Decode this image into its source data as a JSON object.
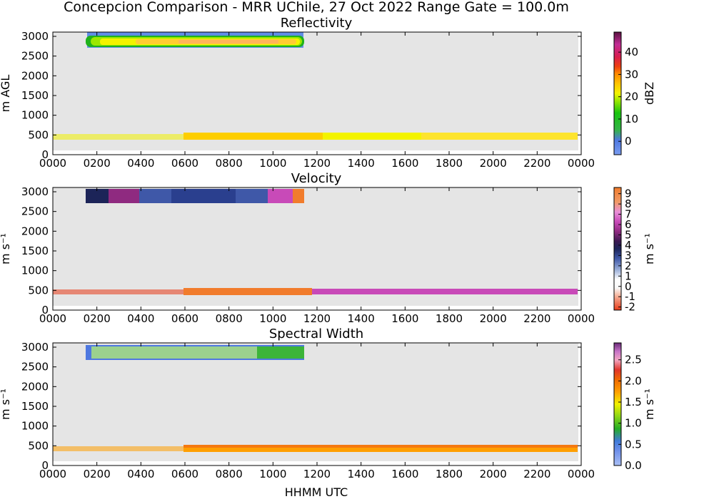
{
  "figure": {
    "title": "Concepcion Comparison - MRR UChile, 27 Oct 2022 Range Gate = 100.0m",
    "xlabel": "HHMM UTC"
  },
  "chart_data": [
    {
      "type": "heatmap",
      "title": "Reflectivity",
      "ylabel": "m AGL",
      "xticks": [
        "0000",
        "0200",
        "0400",
        "0600",
        "0800",
        "1000",
        "1200",
        "1400",
        "1600",
        "1800",
        "2000",
        "2200",
        "0000"
      ],
      "yticks": [
        0,
        500,
        1000,
        1500,
        2000,
        2500,
        3000
      ],
      "xlim_hours": [
        0,
        24
      ],
      "ylim": [
        0,
        3000
      ],
      "plot_background": "#e5e5e5",
      "colorbar": {
        "label": "dBZ",
        "ticks": [
          0,
          10,
          20,
          30,
          40
        ],
        "range": [
          -6,
          49
        ]
      },
      "features": [
        {
          "name": "upper layer",
          "start_hour": 1.6,
          "end_hour": 11.4,
          "height_range_m": [
            2700,
            3050
          ],
          "value_range": [
            5,
            25
          ]
        },
        {
          "name": "low layer",
          "start_hour": 0.0,
          "end_hour": 23.9,
          "height_range_m": [
            350,
            550
          ],
          "value_range": [
            10,
            25
          ]
        }
      ]
    },
    {
      "type": "heatmap",
      "title": "Velocity",
      "ylabel": "m s⁻¹",
      "xticks": [
        "0000",
        "0200",
        "0400",
        "0600",
        "0800",
        "1000",
        "1200",
        "1400",
        "1600",
        "1800",
        "2000",
        "2200",
        "0000"
      ],
      "yticks": [
        0,
        500,
        1000,
        1500,
        2000,
        2500,
        3000
      ],
      "xlim_hours": [
        0,
        24
      ],
      "ylim": [
        0,
        3000
      ],
      "plot_background": "#e5e5e5",
      "colorbar": {
        "label": "m s⁻¹",
        "ticks": [
          -2,
          -1,
          0,
          1,
          2,
          3,
          4,
          5,
          6,
          7,
          8,
          9
        ],
        "range": [
          -2.3,
          9.6
        ]
      },
      "features": [
        {
          "name": "upper layer",
          "start_hour": 1.6,
          "end_hour": 11.4,
          "height_range_m": [
            2700,
            3050
          ],
          "value_range": [
            2,
            8
          ]
        },
        {
          "name": "low layer",
          "start_hour": 0.0,
          "end_hour": 23.9,
          "height_range_m": [
            350,
            550
          ],
          "value_range": [
            5,
            8
          ]
        }
      ]
    },
    {
      "type": "heatmap",
      "title": "Spectral Width",
      "ylabel": "m s⁻¹",
      "xticks": [
        "0000",
        "0200",
        "0400",
        "0600",
        "0800",
        "1000",
        "1200",
        "1400",
        "1600",
        "1800",
        "2000",
        "2200",
        "0000"
      ],
      "yticks": [
        0,
        500,
        1000,
        1500,
        2000,
        2500,
        3000
      ],
      "xlim_hours": [
        0,
        24
      ],
      "ylim": [
        0,
        3000
      ],
      "plot_background": "#e5e5e5",
      "colorbar": {
        "label": "m s⁻¹",
        "ticks": [
          "0.0",
          "0.5",
          "1.0",
          "1.5",
          "2.0",
          "2.5"
        ],
        "range": [
          0,
          2.9
        ]
      },
      "features": [
        {
          "name": "upper layer",
          "start_hour": 1.6,
          "end_hour": 11.4,
          "height_range_m": [
            2700,
            3050
          ],
          "value_range": [
            0.4,
            1.0
          ]
        },
        {
          "name": "low layer",
          "start_hour": 0.0,
          "end_hour": 23.9,
          "height_range_m": [
            350,
            550
          ],
          "value_range": [
            1.5,
            2.0
          ]
        }
      ]
    }
  ]
}
